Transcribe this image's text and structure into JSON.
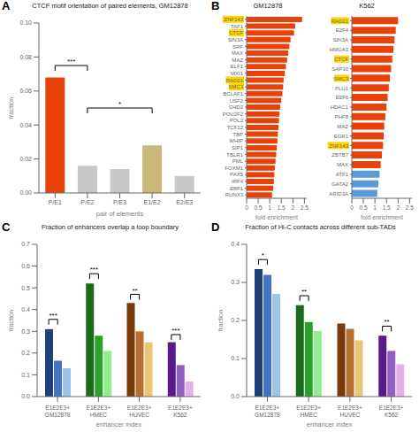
{
  "chart_data": [
    {
      "type": "bar",
      "panel_label": "A",
      "title": "CTCF motif orientation of paired elements, GM12878",
      "categories": [
        "P/E1",
        "P/E2",
        "P/E3",
        "E1/E2",
        "E2/E3"
      ],
      "values": [
        0.068,
        0.016,
        0.014,
        0.028,
        0.01
      ],
      "colors": [
        "#e8420a",
        "#c8c8c8",
        "#c8c8c8",
        "#c8b87a",
        "#c8c8c8"
      ],
      "xlabel": "pair of elements",
      "ylabel": "fraction",
      "ylim": [
        0,
        0.1
      ],
      "yticks": [
        {
          "value": 0,
          "label": "0.00"
        },
        0.02,
        0.04,
        0.06,
        0.08,
        {
          "value": 0.1,
          "label": "0.10"
        }
      ],
      "grid": false,
      "annotations": [
        {
          "text": "***",
          "from": "P/E1",
          "to": "P/E2",
          "y": 0.075
        },
        {
          "text": "*",
          "from": "P/E2",
          "to": "E1/E2",
          "y": 0.05
        }
      ]
    },
    {
      "type": "bar",
      "orientation": "horizontal",
      "panel_label": "B",
      "title": "GM12878",
      "categories": [
        "ZNF143",
        "TAF1",
        "CTCF",
        "SIN3A",
        "SRF",
        "MAX",
        "MAZ",
        "ELF1",
        "MXI1",
        "RAD21",
        "SMC3",
        "BCLAF1",
        "USF2",
        "CHD2",
        "POU2F2",
        "POL2",
        "TCF12",
        "TBP",
        "WHIP",
        "SIP1",
        "TBLR1",
        "PML",
        "FOXM1",
        "PAX5",
        "IRF4",
        "EBF1",
        "RUNX3"
      ],
      "values": [
        2.4,
        2.1,
        2.05,
        1.9,
        1.85,
        1.8,
        1.75,
        1.7,
        1.65,
        1.6,
        1.58,
        1.55,
        1.5,
        1.45,
        1.42,
        1.4,
        1.38,
        1.35,
        1.33,
        1.3,
        1.28,
        1.25,
        1.22,
        1.2,
        1.18,
        1.15,
        1.1
      ],
      "color": "#e8420a",
      "highlight": [
        "ZNF143",
        "CTCF",
        "RAD21",
        "SMC3"
      ],
      "highlight_color": "#FFD700",
      "xlabel": "fold enrichment",
      "xlim": [
        0,
        2.6
      ],
      "xticks": [
        0,
        0.5,
        1,
        1.5,
        2,
        2.5
      ],
      "grid": false
    },
    {
      "type": "bar",
      "orientation": "horizontal",
      "title": "K562",
      "categories": [
        "RAD21",
        "E2F4",
        "SIN3A",
        "HMGA3",
        "CTCF",
        "SAP30",
        "SMC3",
        "PLU1",
        "E2F6",
        "HDAC1",
        "PHF8",
        "MAZ",
        "EGR1",
        "ZNF143",
        "ZBTB7",
        "MAX",
        "ATF1",
        "GATA2",
        "ARID3A"
      ],
      "values": [
        2.0,
        1.9,
        1.85,
        1.8,
        1.75,
        1.7,
        1.65,
        1.6,
        1.55,
        1.5,
        1.45,
        1.4,
        1.38,
        1.35,
        1.3,
        1.25,
        1.2,
        1.15,
        1.1
      ],
      "colors": [
        "#e8420a",
        "#e8420a",
        "#e8420a",
        "#e8420a",
        "#e8420a",
        "#e8420a",
        "#e8420a",
        "#e8420a",
        "#e8420a",
        "#e8420a",
        "#e8420a",
        "#e8420a",
        "#e8420a",
        "#e8420a",
        "#e8420a",
        "#e8420a",
        "#5b9bd5",
        "#5b9bd5",
        "#5b9bd5"
      ],
      "highlight": [
        "RAD21",
        "CTCF",
        "SMC3",
        "ZNF143"
      ],
      "highlight_color": "#FFD700",
      "xlabel": "fold enrichment",
      "xlim": [
        0,
        2.6
      ],
      "xticks": [
        0,
        0.5,
        1,
        1.5,
        2,
        2.5
      ],
      "grid": false
    },
    {
      "type": "bar",
      "panel_label": "C",
      "title": "Fraction of enhancers overlap a loop boundary",
      "categories": [
        "E1E2E3+\nGM12878",
        "E1E2E3+\nHMEC",
        "E1E2E3+\nHUVEC",
        "E1E2E3+\nK562"
      ],
      "series": [
        {
          "values": [
            0.31,
            0.52,
            0.43,
            0.25
          ],
          "colors": [
            "#1f3f7a",
            "#1a6b1a",
            "#7a3a0a",
            "#5a1a8a"
          ]
        },
        {
          "values": [
            0.165,
            0.28,
            0.3,
            0.145
          ],
          "colors": [
            "#4472c4",
            "#2ca02c",
            "#b87030",
            "#9060c0"
          ]
        },
        {
          "values": [
            0.13,
            0.21,
            0.25,
            0.07
          ],
          "colors": [
            "#9dc3e6",
            "#90ee90",
            "#e8c878",
            "#e8b0e8"
          ]
        }
      ],
      "xlabel": "enhancer index",
      "ylabel": "fraction",
      "ylim": [
        0,
        0.7
      ],
      "yticks": [
        {
          "value": 0,
          "label": "0.0"
        },
        0.1,
        0.2,
        0.3,
        0.4,
        0.5,
        0.6,
        0.7
      ],
      "grid": false,
      "annotations": [
        {
          "text": "***",
          "category": "E1E2E3+\nGM12878",
          "bars": [
            0,
            1
          ],
          "y": 0.355
        },
        {
          "text": "***",
          "category": "E1E2E3+\nHMEC",
          "bars": [
            0,
            1
          ],
          "y": 0.565
        },
        {
          "text": "**",
          "category": "E1E2E3+\nHUVEC",
          "bars": [
            0,
            1
          ],
          "y": 0.47
        },
        {
          "text": "***",
          "category": "E1E2E3+\nK562",
          "bars": [
            0,
            1
          ],
          "y": 0.285
        }
      ]
    },
    {
      "type": "bar",
      "panel_label": "D",
      "title": "Fraction of Hi-C contacts across different sub-TADs",
      "categories": [
        "E1E2E3+\nGM12878",
        "E1E2E3+\nHMEC",
        "E1E2E3+\nHUVEC",
        "E1E2E3+\nK562"
      ],
      "series": [
        {
          "values": [
            0.335,
            0.24,
            0.192,
            0.16
          ],
          "colors": [
            "#1f3f7a",
            "#1a6b1a",
            "#7a3a0a",
            "#5a1a8a"
          ]
        },
        {
          "values": [
            0.32,
            0.196,
            0.178,
            0.12
          ],
          "colors": [
            "#4472c4",
            "#2ca02c",
            "#b87030",
            "#9060c0"
          ]
        },
        {
          "values": [
            0.27,
            0.172,
            0.148,
            0.085
          ],
          "colors": [
            "#9dc3e6",
            "#90ee90",
            "#e8c878",
            "#e8b0e8"
          ]
        }
      ],
      "xlabel": "enhancer index",
      "ylabel": "fraction",
      "ylim": [
        0,
        0.4
      ],
      "yticks": [
        {
          "value": 0,
          "label": "0.0"
        },
        0.1,
        0.2,
        0.3,
        0.4
      ],
      "grid": false,
      "annotations": [
        {
          "text": "*",
          "category": "E1E2E3+\nGM12878",
          "bars": [
            0,
            1
          ],
          "y": 0.36
        },
        {
          "text": "**",
          "category": "E1E2E3+\nHMEC",
          "bars": [
            0,
            1
          ],
          "y": 0.265
        },
        {
          "text": "**",
          "category": "E1E2E3+\nK562",
          "bars": [
            0,
            1
          ],
          "y": 0.185
        }
      ]
    }
  ]
}
